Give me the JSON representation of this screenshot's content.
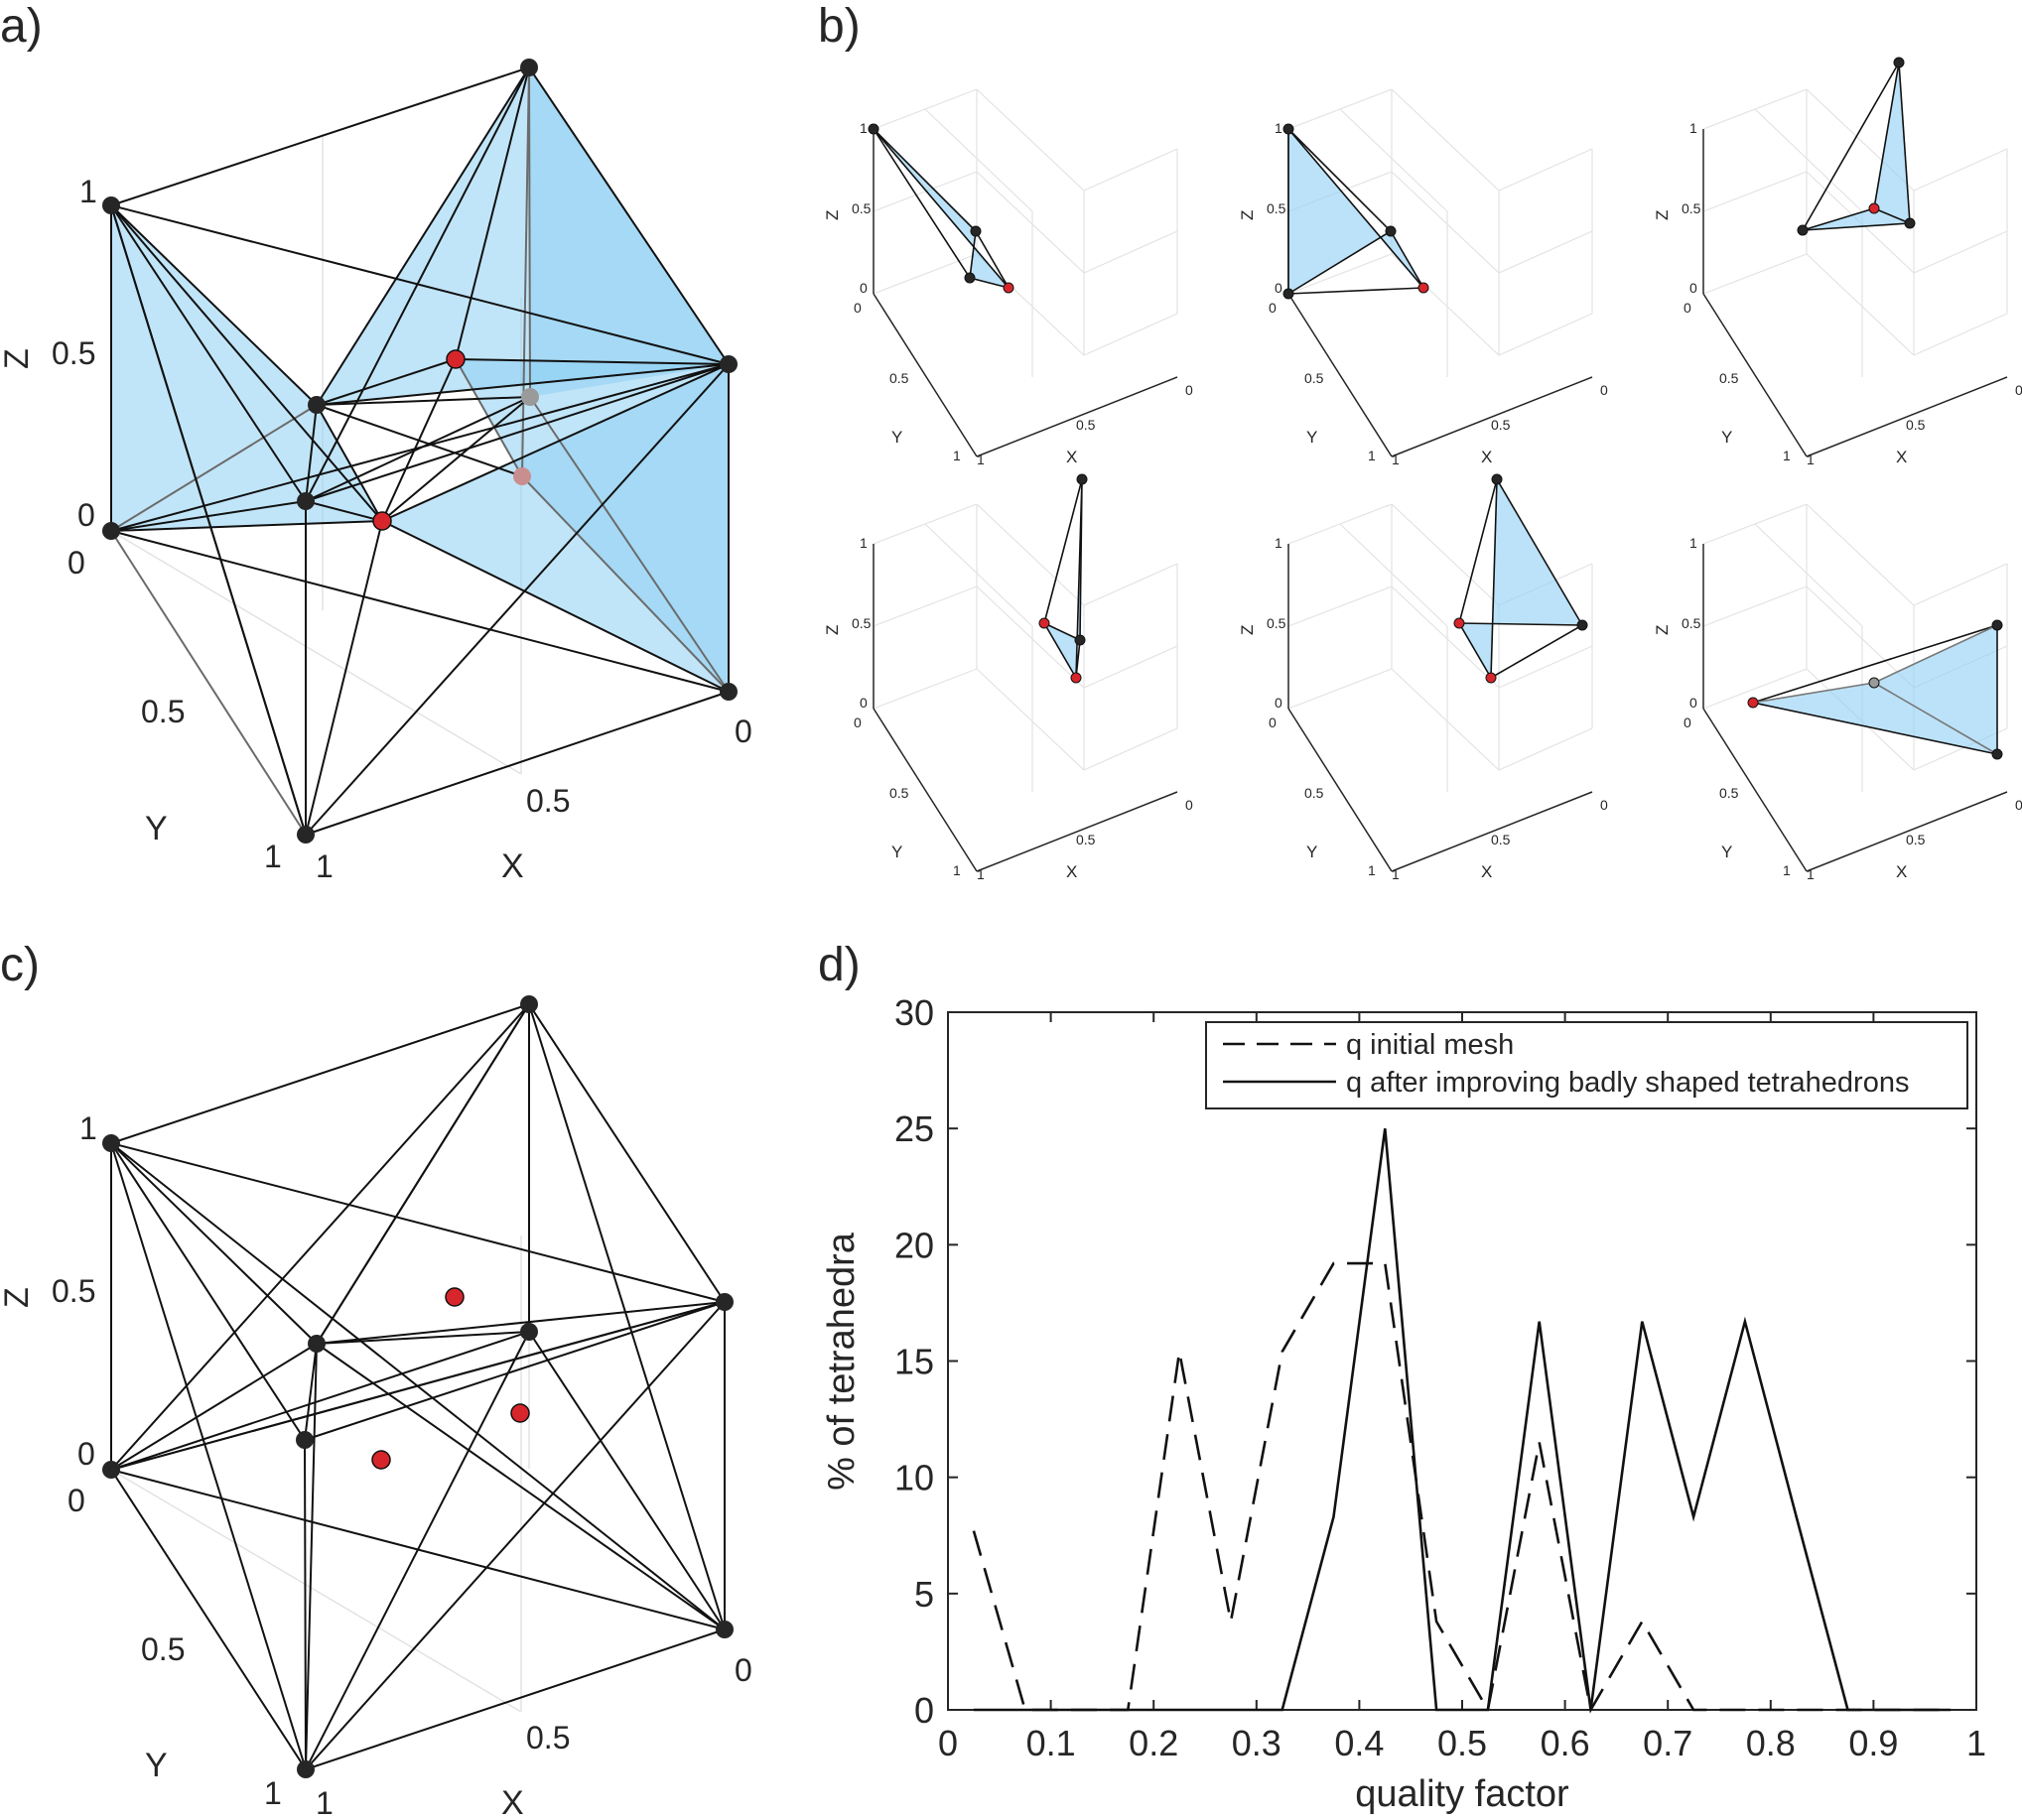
{
  "panel_labels": {
    "a": "a)",
    "b": "b)",
    "c": "c)",
    "d": "d)"
  },
  "colors": {
    "face_fill": "#8ecff3",
    "edge": "#111111",
    "node": "#262626",
    "new_node": "#d7262b",
    "hidden_node": "#9a9a9a",
    "hidden_red_node": "#c98f8f",
    "grid": "#e3e3e3"
  },
  "panel_a": {
    "z_label": "Z",
    "y_label": "Y",
    "x_label": "X",
    "z_ticks": [
      "1",
      "0.5",
      "0"
    ],
    "y_ticks": [
      "0",
      "0.5",
      "1"
    ],
    "x_ticks": [
      "1",
      "0.5",
      "0"
    ]
  },
  "panel_b": {
    "z_label": "Z",
    "y_label": "Y",
    "x_label": "X",
    "z_ticks": [
      "1",
      "0.5",
      "0"
    ],
    "y_ticks": [
      "0",
      "0.5",
      "1"
    ],
    "x_ticks": [
      "1",
      "0.5",
      "0"
    ]
  },
  "panel_c": {
    "z_label": "Z",
    "y_label": "Y",
    "x_label": "X",
    "z_ticks": [
      "1",
      "0.5",
      "0"
    ],
    "y_ticks": [
      "0",
      "0.5",
      "1"
    ],
    "x_ticks": [
      "1",
      "0.5",
      "0"
    ]
  },
  "chart_data": {
    "type": "line",
    "xlabel": "quality factor",
    "ylabel": "% of tetrahedra",
    "xlim": [
      0,
      1
    ],
    "ylim": [
      0,
      30
    ],
    "x_ticks": [
      "0",
      "0.1",
      "0.2",
      "0.3",
      "0.4",
      "0.5",
      "0.6",
      "0.7",
      "0.8",
      "0.9",
      "1"
    ],
    "y_ticks": [
      "0",
      "5",
      "10",
      "15",
      "20",
      "25",
      "30"
    ],
    "legend_position": "top-right",
    "grid": false,
    "series": [
      {
        "name": "q initial mesh",
        "style": "dashed",
        "x": [
          0.025,
          0.075,
          0.125,
          0.175,
          0.225,
          0.275,
          0.325,
          0.375,
          0.425,
          0.475,
          0.525,
          0.575,
          0.625,
          0.675,
          0.725,
          0.775,
          0.825,
          0.875,
          0.925,
          0.975
        ],
        "y": [
          7.7,
          0,
          0,
          0,
          15.4,
          3.8,
          15.4,
          19.2,
          19.2,
          3.8,
          0,
          11.5,
          0,
          3.8,
          0,
          0,
          0,
          0,
          0,
          0
        ]
      },
      {
        "name": "q after improving badly shaped tetrahedrons",
        "style": "solid",
        "x": [
          0.025,
          0.075,
          0.125,
          0.175,
          0.225,
          0.275,
          0.325,
          0.375,
          0.425,
          0.475,
          0.525,
          0.575,
          0.625,
          0.675,
          0.725,
          0.775,
          0.825,
          0.875,
          0.925,
          0.975
        ],
        "y": [
          0,
          0,
          0,
          0,
          0,
          0,
          0,
          8.3,
          25,
          0,
          0,
          16.7,
          0,
          16.7,
          8.3,
          16.7,
          8.3,
          0,
          0,
          0
        ]
      }
    ]
  }
}
